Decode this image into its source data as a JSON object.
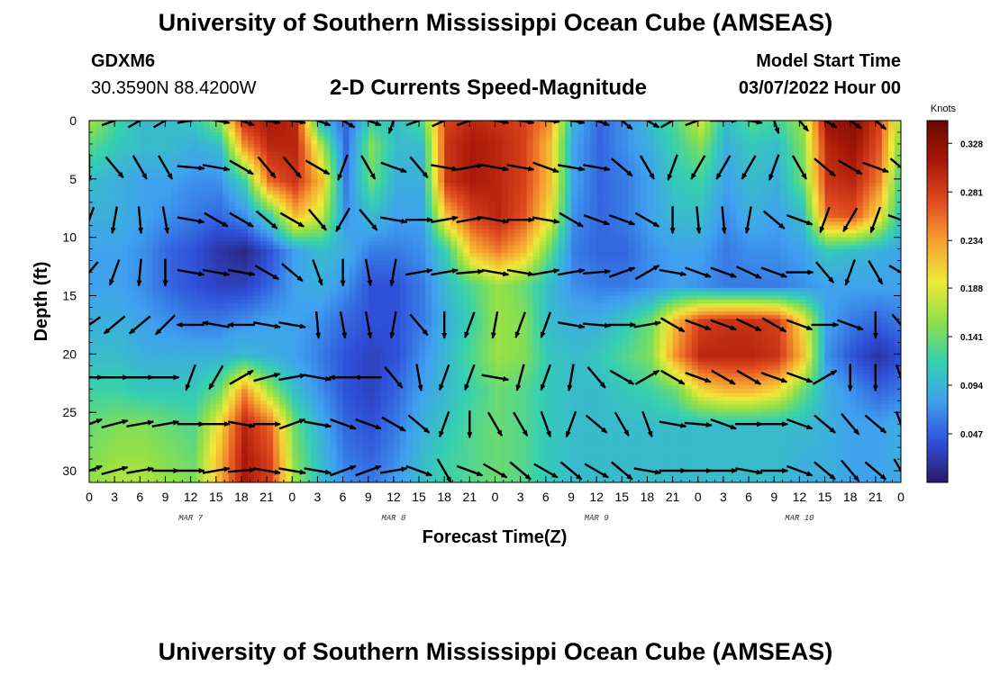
{
  "header": {
    "title": "University of Southern Mississippi Ocean Cube (AMSEAS)",
    "station": "GDXM6",
    "location": "30.3590N  88.4200W",
    "plot_title": "2-D Currents Speed-Magnitude",
    "model_start_label": "Model Start Time",
    "model_start_value": "03/07/2022 Hour 00"
  },
  "footer": {
    "title": "University of Southern Mississippi Ocean Cube (AMSEAS)"
  },
  "chart_data": {
    "type": "heatmap",
    "xlabel": "Forecast Time(Z)",
    "ylabel": "Depth (ft)",
    "x_ticks": [
      "0",
      "3",
      "6",
      "9",
      "12",
      "15",
      "18",
      "21",
      "0",
      "3",
      "6",
      "9",
      "12",
      "15",
      "18",
      "21",
      "0",
      "3",
      "6",
      "9",
      "12",
      "15",
      "18",
      "21",
      "0",
      "3",
      "6",
      "9",
      "12",
      "15",
      "18",
      "21",
      "0"
    ],
    "date_labels": [
      {
        "label": "MAR 7",
        "hour": 12
      },
      {
        "label": "MAR 8",
        "hour": 36
      },
      {
        "label": "MAR 9",
        "hour": 60
      },
      {
        "label": "MAR 10",
        "hour": 84
      }
    ],
    "x_range_hours": [
      0,
      96
    ],
    "y_ticks": [
      0,
      5,
      10,
      15,
      20,
      25,
      30
    ],
    "y_range": [
      0,
      31
    ],
    "y_inverted": true,
    "colorbar": {
      "label": "Knots",
      "ticks": [
        "0.328",
        "0.281",
        "0.234",
        "0.188",
        "0.141",
        "0.094",
        "0.047"
      ],
      "range": [
        0,
        0.35
      ],
      "colors": [
        "#2a1a6a",
        "#2f4fd8",
        "#3fa0f0",
        "#35d0b0",
        "#8fe048",
        "#f0e83a",
        "#f5a030",
        "#e04a20",
        "#a81808",
        "#6a0800"
      ]
    },
    "speed_bands": [
      {
        "depth": 0,
        "values": [
          0.16,
          0.12,
          0.1,
          0.1,
          0.11,
          0.15,
          0.29,
          0.31,
          0.3,
          0.1,
          0.05,
          0.12,
          0.1,
          0.13,
          0.28,
          0.3,
          0.29,
          0.28,
          0.24,
          0.09,
          0.05,
          0.07,
          0.1,
          0.13,
          0.18,
          0.1,
          0.13,
          0.12,
          0.16,
          0.32,
          0.33,
          0.28,
          0.14
        ]
      },
      {
        "depth": 2,
        "values": [
          0.13,
          0.11,
          0.1,
          0.1,
          0.09,
          0.1,
          0.24,
          0.3,
          0.3,
          0.17,
          0.05,
          0.15,
          0.1,
          0.1,
          0.29,
          0.31,
          0.3,
          0.28,
          0.22,
          0.08,
          0.05,
          0.07,
          0.09,
          0.12,
          0.15,
          0.09,
          0.11,
          0.1,
          0.15,
          0.3,
          0.32,
          0.27,
          0.12
        ]
      },
      {
        "depth": 5,
        "values": [
          0.1,
          0.09,
          0.08,
          0.08,
          0.07,
          0.07,
          0.12,
          0.26,
          0.29,
          0.22,
          0.06,
          0.14,
          0.09,
          0.09,
          0.29,
          0.31,
          0.3,
          0.28,
          0.22,
          0.08,
          0.05,
          0.06,
          0.08,
          0.11,
          0.12,
          0.08,
          0.1,
          0.09,
          0.14,
          0.29,
          0.3,
          0.25,
          0.1
        ]
      },
      {
        "depth": 8,
        "values": [
          0.09,
          0.09,
          0.08,
          0.07,
          0.06,
          0.05,
          0.07,
          0.12,
          0.22,
          0.18,
          0.07,
          0.1,
          0.08,
          0.08,
          0.22,
          0.28,
          0.3,
          0.27,
          0.2,
          0.07,
          0.05,
          0.06,
          0.08,
          0.1,
          0.1,
          0.07,
          0.09,
          0.08,
          0.1,
          0.26,
          0.27,
          0.2,
          0.09
        ]
      },
      {
        "depth": 11,
        "values": [
          0.08,
          0.08,
          0.07,
          0.05,
          0.04,
          0.02,
          0.01,
          0.04,
          0.08,
          0.1,
          0.09,
          0.06,
          0.06,
          0.07,
          0.12,
          0.22,
          0.25,
          0.22,
          0.14,
          0.06,
          0.05,
          0.05,
          0.07,
          0.08,
          0.08,
          0.06,
          0.07,
          0.07,
          0.08,
          0.11,
          0.1,
          0.09,
          0.08
        ]
      },
      {
        "depth": 14,
        "values": [
          0.08,
          0.08,
          0.07,
          0.05,
          0.04,
          0.03,
          0.03,
          0.05,
          0.08,
          0.09,
          0.07,
          0.04,
          0.04,
          0.06,
          0.1,
          0.13,
          0.16,
          0.14,
          0.1,
          0.07,
          0.06,
          0.06,
          0.07,
          0.08,
          0.07,
          0.06,
          0.06,
          0.06,
          0.07,
          0.08,
          0.08,
          0.08,
          0.08
        ]
      },
      {
        "depth": 17,
        "values": [
          0.09,
          0.09,
          0.08,
          0.07,
          0.06,
          0.06,
          0.07,
          0.08,
          0.08,
          0.07,
          0.05,
          0.04,
          0.04,
          0.06,
          0.09,
          0.12,
          0.16,
          0.15,
          0.1,
          0.09,
          0.09,
          0.11,
          0.14,
          0.22,
          0.28,
          0.29,
          0.29,
          0.28,
          0.2,
          0.08,
          0.06,
          0.05,
          0.06
        ]
      },
      {
        "depth": 20,
        "values": [
          0.1,
          0.1,
          0.09,
          0.09,
          0.09,
          0.09,
          0.1,
          0.09,
          0.08,
          0.06,
          0.04,
          0.03,
          0.04,
          0.07,
          0.1,
          0.13,
          0.16,
          0.15,
          0.11,
          0.1,
          0.11,
          0.13,
          0.15,
          0.24,
          0.3,
          0.3,
          0.3,
          0.29,
          0.22,
          0.07,
          0.04,
          0.02,
          0.04
        ]
      },
      {
        "depth": 23,
        "values": [
          0.12,
          0.12,
          0.11,
          0.11,
          0.11,
          0.14,
          0.24,
          0.16,
          0.1,
          0.07,
          0.04,
          0.03,
          0.05,
          0.08,
          0.1,
          0.12,
          0.14,
          0.13,
          0.11,
          0.1,
          0.1,
          0.11,
          0.12,
          0.14,
          0.2,
          0.22,
          0.22,
          0.2,
          0.14,
          0.09,
          0.07,
          0.05,
          0.06
        ]
      },
      {
        "depth": 26,
        "values": [
          0.14,
          0.15,
          0.15,
          0.14,
          0.13,
          0.2,
          0.3,
          0.26,
          0.14,
          0.09,
          0.05,
          0.04,
          0.06,
          0.09,
          0.11,
          0.13,
          0.14,
          0.13,
          0.11,
          0.1,
          0.1,
          0.1,
          0.1,
          0.1,
          0.1,
          0.1,
          0.1,
          0.1,
          0.1,
          0.09,
          0.08,
          0.08,
          0.09
        ]
      },
      {
        "depth": 29,
        "values": [
          0.15,
          0.16,
          0.16,
          0.15,
          0.14,
          0.22,
          0.31,
          0.28,
          0.15,
          0.1,
          0.06,
          0.05,
          0.07,
          0.1,
          0.12,
          0.13,
          0.14,
          0.13,
          0.11,
          0.1,
          0.1,
          0.1,
          0.1,
          0.1,
          0.1,
          0.1,
          0.1,
          0.1,
          0.09,
          0.09,
          0.08,
          0.08,
          0.09
        ]
      },
      {
        "depth": 31,
        "values": [
          0.16,
          0.17,
          0.17,
          0.16,
          0.15,
          0.22,
          0.31,
          0.28,
          0.16,
          0.1,
          0.07,
          0.06,
          0.08,
          0.1,
          0.12,
          0.13,
          0.14,
          0.13,
          0.11,
          0.1,
          0.1,
          0.1,
          0.1,
          0.1,
          0.1,
          0.1,
          0.1,
          0.1,
          0.09,
          0.09,
          0.08,
          0.08,
          0.09
        ]
      }
    ],
    "vector_depths": [
      0,
      4,
      8.5,
      13,
      17.5,
      22,
      26,
      30
    ],
    "vector_angles_deg": [
      [
        60,
        70,
        60,
        60,
        80,
        100,
        110,
        100,
        100,
        110,
        120,
        110,
        200,
        70,
        65,
        70,
        100,
        100,
        95,
        100,
        110,
        130,
        120,
        60,
        70,
        90,
        100,
        160,
        140,
        120,
        125,
        130,
        130
      ],
      [
        180,
        140,
        150,
        150,
        95,
        100,
        120,
        140,
        140,
        120,
        200,
        150,
        110,
        140,
        100,
        80,
        100,
        100,
        110,
        100,
        100,
        130,
        150,
        200,
        210,
        210,
        210,
        200,
        150,
        130,
        120,
        110,
        130
      ],
      [
        200,
        190,
        175,
        170,
        100,
        120,
        120,
        130,
        120,
        140,
        210,
        140,
        100,
        90,
        80,
        80,
        100,
        90,
        100,
        120,
        110,
        110,
        120,
        180,
        175,
        175,
        190,
        130,
        110,
        200,
        210,
        200,
        110
      ],
      [
        220,
        200,
        185,
        180,
        100,
        100,
        100,
        120,
        130,
        160,
        180,
        170,
        190,
        80,
        80,
        85,
        100,
        100,
        80,
        80,
        85,
        70,
        60,
        100,
        110,
        110,
        115,
        110,
        90,
        140,
        200,
        150,
        120
      ],
      [
        235,
        230,
        230,
        225,
        270,
        280,
        270,
        100,
        100,
        175,
        170,
        170,
        190,
        140,
        180,
        200,
        190,
        200,
        200,
        100,
        95,
        90,
        80,
        120,
        110,
        110,
        115,
        120,
        110,
        90,
        110,
        180,
        140
      ],
      [
        90,
        90,
        90,
        90,
        200,
        210,
        60,
        75,
        80,
        100,
        270,
        270,
        140,
        170,
        200,
        200,
        100,
        195,
        200,
        190,
        140,
        120,
        60,
        120,
        110,
        120,
        120,
        110,
        110,
        60,
        180,
        180,
        160
      ],
      [
        70,
        75,
        80,
        80,
        90,
        90,
        100,
        90,
        70,
        100,
        110,
        110,
        120,
        130,
        200,
        180,
        150,
        150,
        160,
        200,
        130,
        150,
        160,
        100,
        95,
        110,
        90,
        90,
        110,
        130,
        140,
        130,
        160
      ],
      [
        70,
        75,
        80,
        90,
        90,
        80,
        85,
        100,
        100,
        100,
        70,
        70,
        80,
        110,
        150,
        110,
        120,
        130,
        120,
        130,
        120,
        130,
        100,
        90,
        90,
        90,
        100,
        90,
        110,
        130,
        140,
        130,
        150
      ]
    ]
  }
}
